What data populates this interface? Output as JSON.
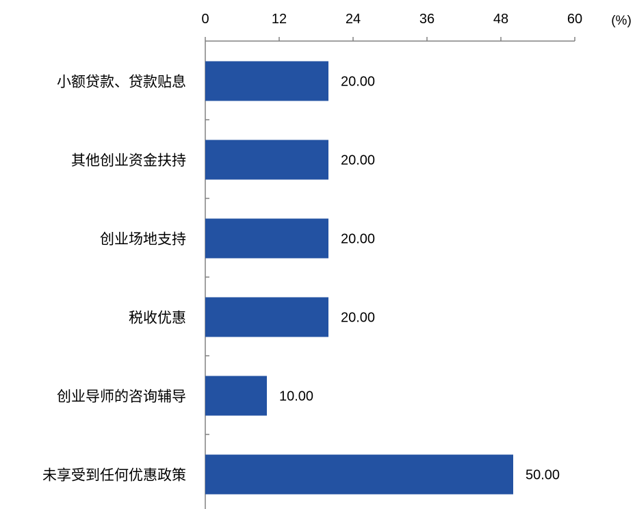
{
  "chart_data": {
    "type": "bar",
    "orientation": "horizontal",
    "categories": [
      "小额贷款、贷款贴息",
      "其他创业资金扶持",
      "创业场地支持",
      "税收优惠",
      "创业导师的咨询辅导",
      "未享受到任何优惠政策"
    ],
    "values": [
      20.0,
      20.0,
      20.0,
      20.0,
      10.0,
      50.0
    ],
    "data_labels": [
      "20.00",
      "20.00",
      "20.00",
      "20.00",
      "10.00",
      "50.00"
    ],
    "axis_ticks": [
      "0",
      "12",
      "24",
      "36",
      "48",
      "60"
    ],
    "axis_unit": "(%)",
    "xlim": [
      0,
      60
    ],
    "axis_position": "top",
    "grid": false,
    "legend": "none",
    "bar_color": "#2352A2",
    "axis_color": "#808080"
  }
}
